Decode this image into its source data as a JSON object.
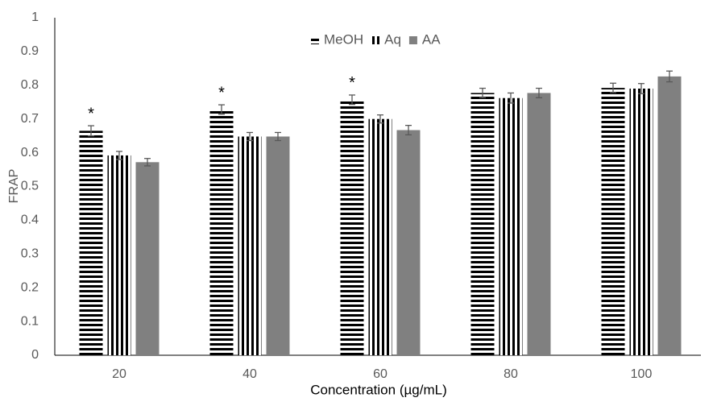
{
  "chart_data": {
    "type": "bar",
    "x_label": "Concentration (µg/mL)",
    "y_label": "FRAP",
    "categories": [
      "20",
      "40",
      "60",
      "80",
      "100"
    ],
    "series": [
      {
        "name": "MeOH",
        "color": "#000000",
        "pattern": "horizontal",
        "values": [
          0.665,
          0.728,
          0.757,
          0.777,
          0.792
        ],
        "errors": [
          0.015,
          0.014,
          0.014,
          0.014,
          0.014
        ]
      },
      {
        "name": "Aq",
        "color": "#000000",
        "pattern": "vertical",
        "values": [
          0.592,
          0.648,
          0.7,
          0.762,
          0.79
        ],
        "errors": [
          0.012,
          0.012,
          0.012,
          0.015,
          0.015
        ]
      },
      {
        "name": "AA",
        "color": "#808080",
        "pattern": "solid",
        "values": [
          0.572,
          0.648,
          0.667,
          0.777,
          0.826
        ],
        "errors": [
          0.011,
          0.012,
          0.014,
          0.014,
          0.016
        ]
      }
    ],
    "annotations": [
      {
        "text": "*",
        "category": "20",
        "series": "MeOH"
      },
      {
        "text": "*",
        "category": "40",
        "series": "MeOH"
      },
      {
        "text": "*",
        "category": "60",
        "series": "MeOH"
      }
    ],
    "ylim": [
      0,
      1
    ],
    "yticks": [
      0,
      0.1,
      0.2,
      0.3,
      0.4,
      0.5,
      0.6,
      0.7,
      0.8,
      0.9,
      1
    ],
    "grid": false,
    "legend": "top"
  }
}
